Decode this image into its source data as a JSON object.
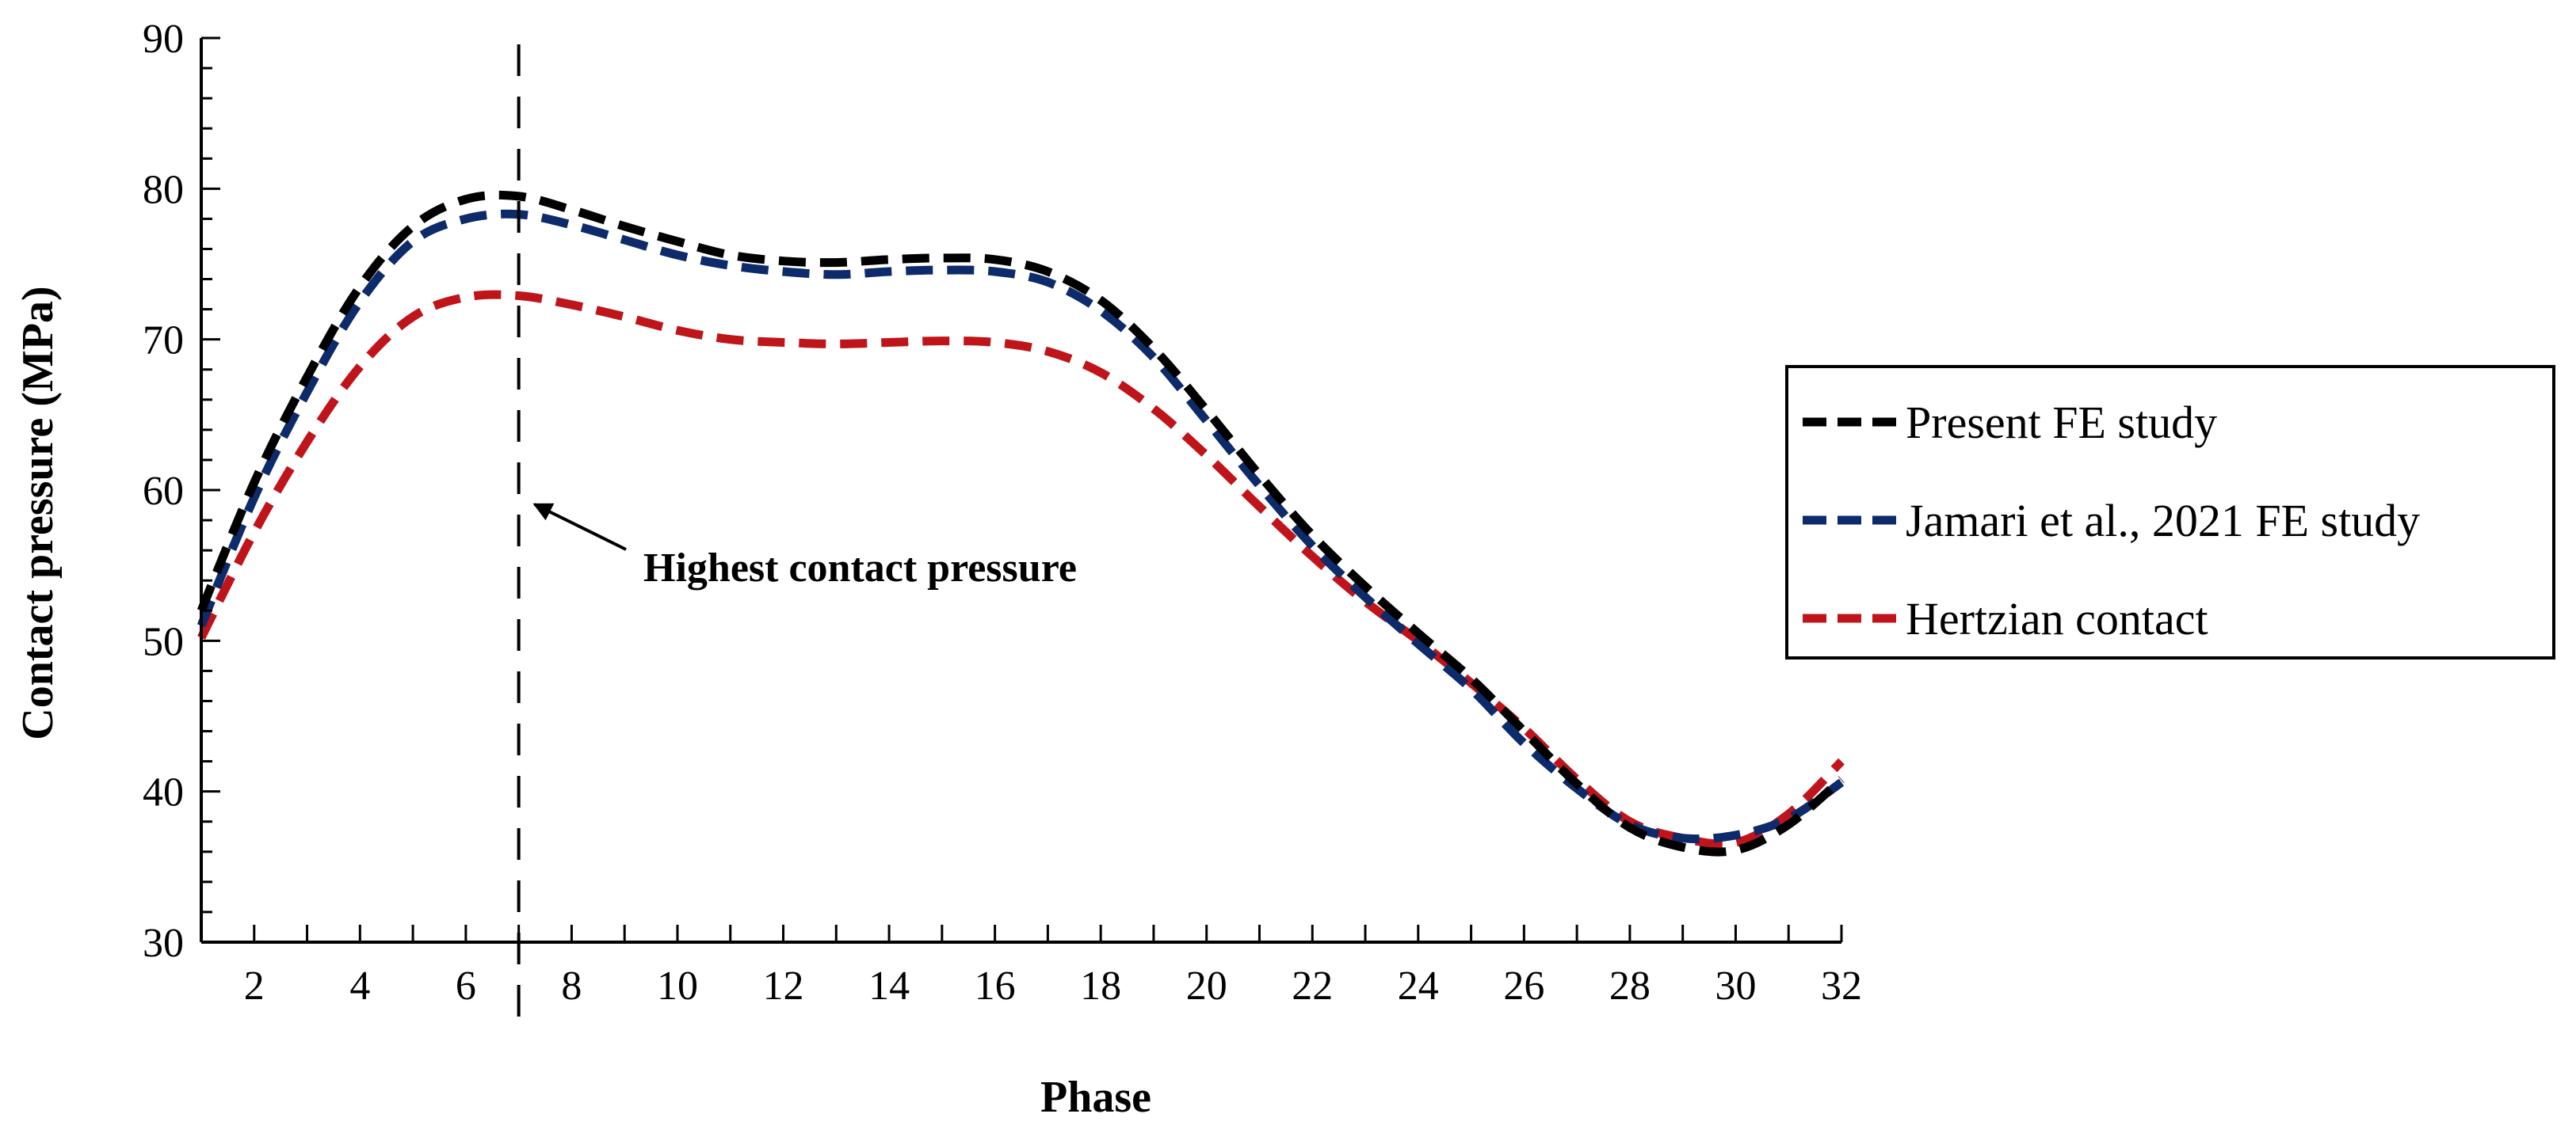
{
  "chart_data": {
    "type": "line",
    "title": "",
    "xlabel": "Phase",
    "ylabel": "Contact pressure (MPa)",
    "xlim": [
      1,
      32
    ],
    "ylim": [
      30,
      90
    ],
    "xticks": [
      2,
      4,
      6,
      8,
      10,
      12,
      14,
      16,
      18,
      20,
      22,
      24,
      26,
      28,
      30,
      32
    ],
    "yticks": [
      30,
      40,
      50,
      60,
      70,
      80,
      90
    ],
    "x": [
      1,
      2,
      3,
      4,
      5,
      6,
      7,
      8,
      9,
      10,
      11,
      12,
      13,
      14,
      15,
      16,
      17,
      18,
      19,
      20,
      21,
      22,
      23,
      24,
      25,
      26,
      27,
      28,
      29,
      30,
      31,
      32
    ],
    "series": [
      {
        "name": "Present FE study",
        "color": "#000000",
        "values": [
          52.0,
          60.5,
          67.5,
          73.5,
          77.5,
          79.3,
          79.5,
          78.6,
          77.5,
          76.5,
          75.6,
          75.2,
          75.1,
          75.3,
          75.4,
          75.3,
          74.5,
          72.6,
          69.4,
          65.3,
          61.0,
          57.0,
          53.6,
          50.5,
          47.5,
          44.0,
          40.5,
          37.6,
          36.3,
          36.1,
          37.8,
          40.8
        ]
      },
      {
        "name": "Jamari et al., 2021 FE study",
        "color": "#0d2a6b",
        "values": [
          51.0,
          59.5,
          66.5,
          72.5,
          76.5,
          78.0,
          78.3,
          77.6,
          76.6,
          75.6,
          74.9,
          74.5,
          74.3,
          74.5,
          74.6,
          74.5,
          73.8,
          71.9,
          68.8,
          64.6,
          60.3,
          56.3,
          52.9,
          49.8,
          46.8,
          43.2,
          40.2,
          37.8,
          36.9,
          37.1,
          38.2,
          40.6
        ]
      },
      {
        "name": "Hertzian contact",
        "color": "#c0141b",
        "values": [
          50.2,
          57.2,
          63.2,
          68.2,
          71.5,
          72.8,
          72.9,
          72.3,
          71.5,
          70.6,
          70.0,
          69.8,
          69.7,
          69.8,
          69.9,
          69.8,
          69.2,
          67.8,
          65.4,
          62.3,
          58.9,
          55.6,
          52.6,
          50.0,
          47.2,
          44.2,
          40.8,
          38.0,
          36.9,
          36.6,
          38.5,
          42.0
        ]
      }
    ],
    "reference_line": {
      "x": 7
    },
    "annotation": {
      "text": "Highest contact pressure",
      "point_x": 7,
      "point_y": 60
    },
    "legend_position": "right"
  }
}
